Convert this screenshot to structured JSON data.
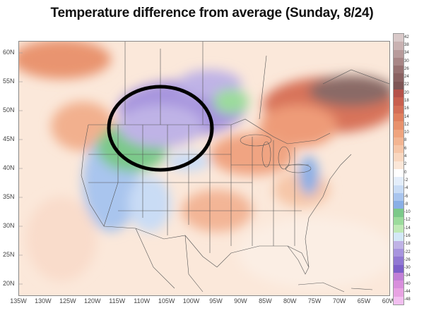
{
  "title": "Temperature difference from average (Sunday, 8/24)",
  "latitude_labels": [
    "60N",
    "55N",
    "50N",
    "45N",
    "40N",
    "35N",
    "30N",
    "25N",
    "20N"
  ],
  "longitude_labels": [
    "135W",
    "130W",
    "125W",
    "120W",
    "115W",
    "110W",
    "105W",
    "100W",
    "95W",
    "90W",
    "85W",
    "80W",
    "75W",
    "70W",
    "65W",
    "60W"
  ],
  "legend": {
    "values": [
      "42",
      "38",
      "34",
      "30",
      "26",
      "24",
      "22",
      "20",
      "18",
      "16",
      "14",
      "12",
      "10",
      "8",
      "6",
      "4",
      "2",
      "0",
      "-2",
      "-4",
      "-6",
      "-8",
      "-10",
      "-12",
      "-14",
      "-16",
      "-18",
      "-22",
      "-26",
      "-30",
      "-34",
      "-40",
      "-44",
      "-48"
    ],
    "colors": [
      "#d9c9c9",
      "#c9b2b2",
      "#b89b9b",
      "#a88686",
      "#977171",
      "#8a6262",
      "#7e5656",
      "#b5524a",
      "#c8604f",
      "#d46f57",
      "#e0805f",
      "#e8926d",
      "#efa47e",
      "#f3b592",
      "#f6c6a8",
      "#f9d7c0",
      "#fbe7d8",
      "#ffffff",
      "#e4eefb",
      "#c9dcf5",
      "#a9c5ee",
      "#8aafe6",
      "#7cc98a",
      "#9bdb9c",
      "#bfe9b6",
      "#d3e8f7",
      "#bfb3e6",
      "#a795de",
      "#9179d3",
      "#7d61c9",
      "#c17fd6",
      "#d88fdc",
      "#e8a3e3",
      "#f2bff0"
    ]
  },
  "annotation": {
    "shape": "ellipse",
    "color": "#000000"
  }
}
